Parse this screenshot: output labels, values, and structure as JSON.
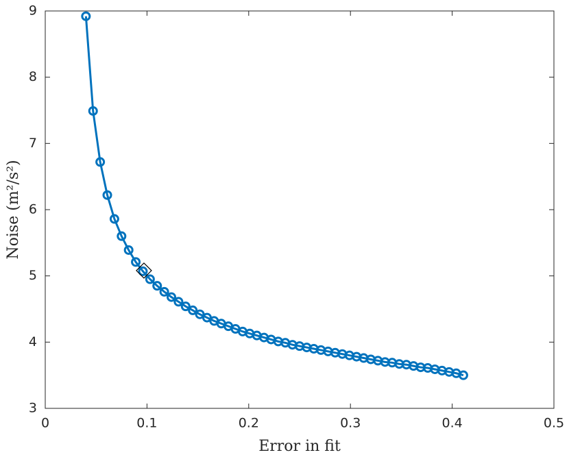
{
  "chart_data": {
    "type": "line",
    "xlabel": "Error in fit",
    "ylabel": "Noise (m²/s²)",
    "x": [
      0.04,
      0.047,
      0.054,
      0.061,
      0.068,
      0.075,
      0.082,
      0.089,
      0.096,
      0.103,
      0.11,
      0.117,
      0.124,
      0.131,
      0.138,
      0.145,
      0.152,
      0.159,
      0.166,
      0.173,
      0.18,
      0.187,
      0.194,
      0.201,
      0.208,
      0.215,
      0.222,
      0.229,
      0.236,
      0.243,
      0.25,
      0.257,
      0.264,
      0.271,
      0.278,
      0.285,
      0.292,
      0.299,
      0.306,
      0.313,
      0.32,
      0.327,
      0.334,
      0.341,
      0.348,
      0.355,
      0.362,
      0.369,
      0.376,
      0.383,
      0.39,
      0.397,
      0.404,
      0.411
    ],
    "series": [
      {
        "color": "#0072bd",
        "marker": "circle",
        "values": [
          8.92,
          7.49,
          6.72,
          6.22,
          5.86,
          5.6,
          5.39,
          5.21,
          5.07,
          4.95,
          4.85,
          4.76,
          4.68,
          4.61,
          4.54,
          4.48,
          4.42,
          4.37,
          4.32,
          4.28,
          4.24,
          4.2,
          4.16,
          4.13,
          4.1,
          4.07,
          4.04,
          4.01,
          3.99,
          3.96,
          3.94,
          3.92,
          3.9,
          3.88,
          3.86,
          3.84,
          3.82,
          3.8,
          3.78,
          3.76,
          3.74,
          3.72,
          3.7,
          3.69,
          3.67,
          3.66,
          3.64,
          3.62,
          3.61,
          3.59,
          3.57,
          3.55,
          3.53,
          3.5
        ]
      }
    ],
    "highlight": {
      "x": 0.097,
      "y": 5.08,
      "color": "#000000",
      "marker": "diamond"
    },
    "xlim": [
      0,
      0.5
    ],
    "xticks": [
      0,
      0.1,
      0.2,
      0.3,
      0.4,
      0.5
    ],
    "ylim": [
      3,
      9
    ],
    "yticks": [
      3,
      4,
      5,
      6,
      7,
      8,
      9
    ],
    "grid": false,
    "box": true
  }
}
